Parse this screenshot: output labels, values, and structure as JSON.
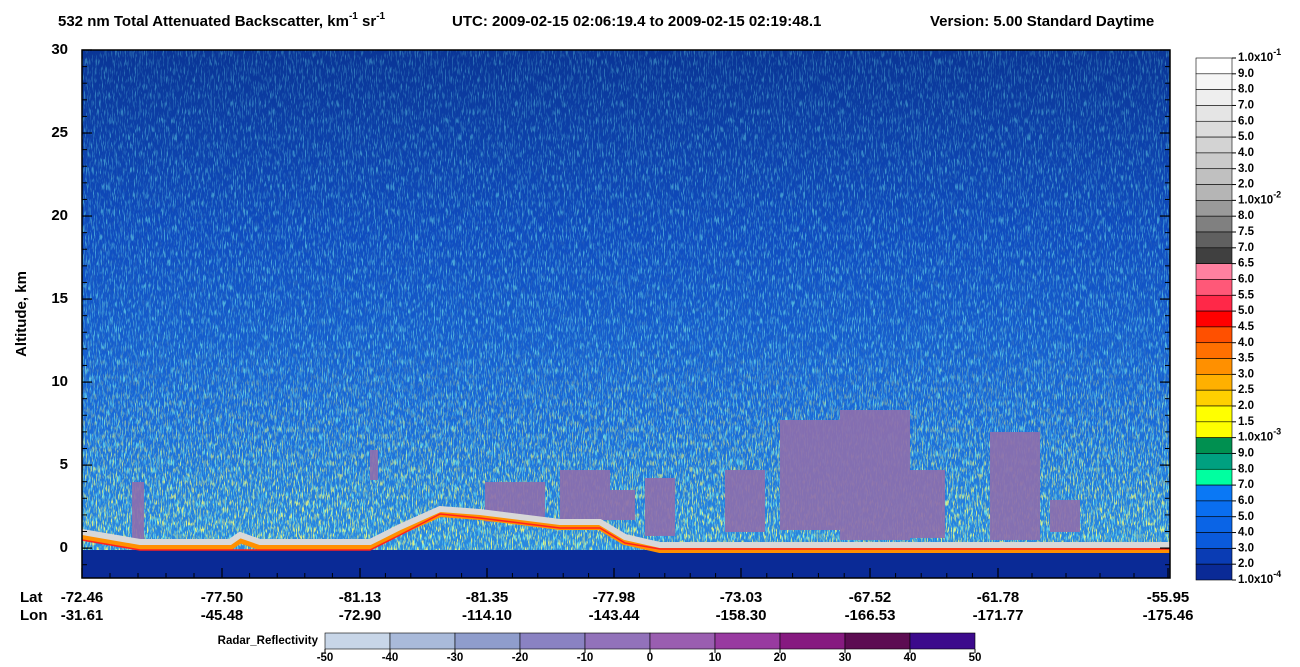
{
  "chart_data": {
    "type": "curtain",
    "title": {
      "main": "532 nm Total Attenuated Backscatter, km",
      "sup1": "-1",
      "unit2": " sr",
      "sup2": "-1",
      "utc": "UTC:  2009-02-15 02:06:19.4  to  2009-02-15 02:19:48.1",
      "version": "Version: 5.00  Standard  Daytime"
    },
    "y_label": "Altitude, km",
    "ylim": [
      -1.8,
      30
    ],
    "yticks": [
      0,
      5,
      10,
      15,
      20,
      25,
      30
    ],
    "x_axis": {
      "lat_label": "Lat",
      "lon_label": "Lon",
      "lat": [
        "-72.46",
        "-77.50",
        "-81.13",
        "-81.35",
        "-77.98",
        "-73.03",
        "-67.52",
        "-61.78",
        "-55.95"
      ],
      "lon": [
        "-31.61",
        "-45.48",
        "-72.90",
        "-114.10",
        "-143.44",
        "-158.30",
        "-166.53",
        "-171.77",
        "-175.46"
      ]
    },
    "colorbar": {
      "labels": [
        {
          "base": "1.0x10",
          "exp": "-1"
        },
        "9.0",
        "8.0",
        "7.0",
        "6.0",
        "5.0",
        "4.0",
        "3.0",
        "2.0",
        {
          "base": "1.0x10",
          "exp": "-2"
        },
        "8.0",
        "7.5",
        "7.0",
        "6.5",
        "6.0",
        "5.5",
        "5.0",
        "4.5",
        "4.0",
        "3.5",
        "3.0",
        "2.5",
        "2.0",
        "1.5",
        {
          "base": "1.0x10",
          "exp": "-3"
        },
        "9.0",
        "8.0",
        "7.0",
        "6.0",
        "5.0",
        "4.0",
        "3.0",
        "2.0",
        {
          "base": "1.0x10",
          "exp": "-4"
        }
      ],
      "colors": [
        "#ffffff",
        "#f6f6f6",
        "#eeeeee",
        "#e5e5e5",
        "#dcdcdc",
        "#d3d3d3",
        "#cacaca",
        "#c0c0c0",
        "#b5b5b5",
        "#9a9a9a",
        "#808080",
        "#606060",
        "#404040",
        "#ff80a0",
        "#ff5878",
        "#ff2848",
        "#ff0000",
        "#ff5000",
        "#ff7000",
        "#ff9000",
        "#ffb000",
        "#ffd000",
        "#ffff00",
        "#ffff00",
        "#009050",
        "#00a080",
        "#00ffa0",
        "#0a78f5",
        "#0a6ef0",
        "#0a64e6",
        "#0a5adc",
        "#0a3cb4",
        "#0a2a96"
      ]
    },
    "radar_colorbar": {
      "title": "Radar_Reflectivity",
      "ticks": [
        -50,
        -40,
        -30,
        -20,
        -10,
        0,
        10,
        20,
        30,
        40,
        50
      ],
      "colors": [
        "#c8d6e8",
        "#a9bada",
        "#8f9dcc",
        "#8a82c2",
        "#9272ba",
        "#9a5eb0",
        "#983aa0",
        "#861a80",
        "#5c0c52",
        "#3c0a8c"
      ]
    }
  }
}
